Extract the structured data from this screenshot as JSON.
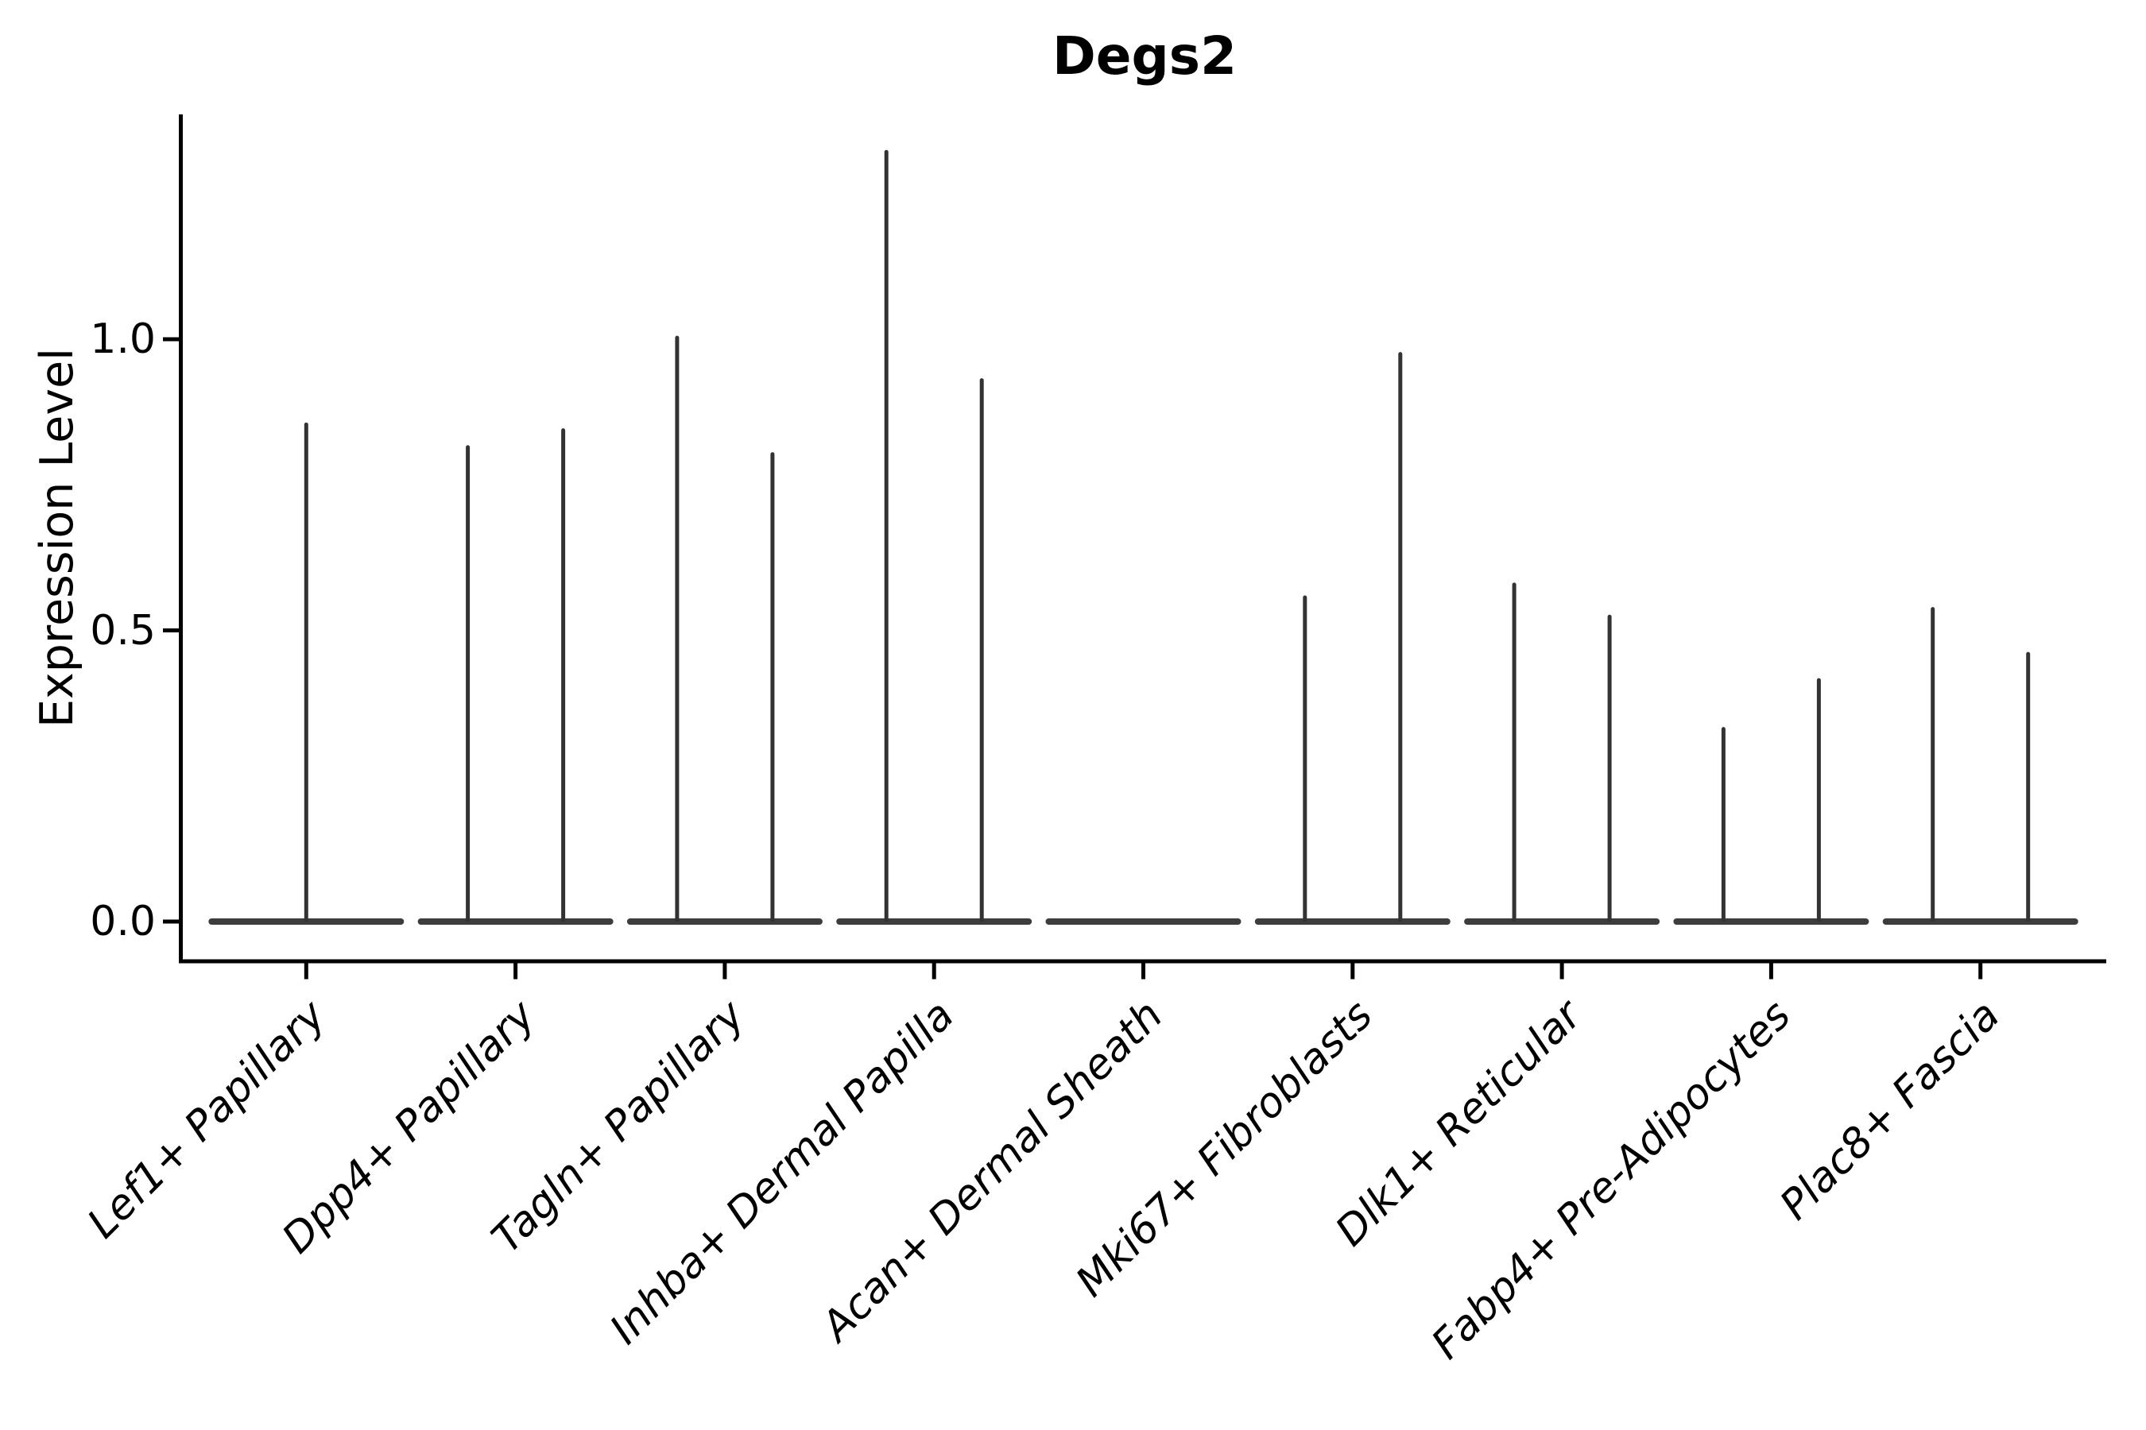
{
  "title": "Degs2",
  "axes": {
    "ylabel": "Expression Level",
    "yticks": [
      {
        "label": "0.0",
        "value": 0.0
      },
      {
        "label": "0.5",
        "value": 0.5
      },
      {
        "label": "1.0",
        "value": 1.0
      }
    ]
  },
  "chart_data": {
    "type": "violin",
    "title": "Degs2",
    "ylabel": "Expression Level",
    "ylim": [
      -0.068,
      1.386
    ],
    "grid": false,
    "legend": "none",
    "categories": [
      "Lef1+ Papillary",
      "Dpp4+ Papillary",
      "Tagln+ Papillary",
      "Inhba+ Dermal Papilla",
      "Acan+ Dermal Sheath",
      "Mki67+ Fibroblasts",
      "Dlk1+ Reticular",
      "Fabp4+ Pre-Adipocytes",
      "Plac8+ Fascia"
    ],
    "groups": [
      {
        "category": "Lef1+ Papillary",
        "violins": [
          {
            "position": "center",
            "peak": 0.857
          }
        ]
      },
      {
        "category": "Dpp4+ Papillary",
        "violins": [
          {
            "position": "left",
            "peak": 0.818
          },
          {
            "position": "right",
            "peak": 0.847
          }
        ]
      },
      {
        "category": "Tagln+ Papillary",
        "violins": [
          {
            "position": "left",
            "peak": 1.006
          },
          {
            "position": "right",
            "peak": 0.806
          }
        ]
      },
      {
        "category": "Inhba+ Dermal Papilla",
        "violins": [
          {
            "position": "left",
            "peak": 1.325
          },
          {
            "position": "right",
            "peak": 0.933
          }
        ]
      },
      {
        "category": "Acan+ Dermal Sheath",
        "violins": [
          {
            "position": "left",
            "peak": 0.0
          },
          {
            "position": "right",
            "peak": 0.0
          }
        ]
      },
      {
        "category": "Mki67+ Fibroblasts",
        "violins": [
          {
            "position": "left",
            "peak": 0.56
          },
          {
            "position": "right",
            "peak": 0.978
          }
        ]
      },
      {
        "category": "Dlk1+ Reticular",
        "violins": [
          {
            "position": "left",
            "peak": 0.582
          },
          {
            "position": "right",
            "peak": 0.527
          }
        ]
      },
      {
        "category": "Fabp4+ Pre-Adipocytes",
        "violins": [
          {
            "position": "left",
            "peak": 0.334
          },
          {
            "position": "right",
            "peak": 0.418
          }
        ]
      },
      {
        "category": "Plac8+ Fascia",
        "violins": [
          {
            "position": "left",
            "peak": 0.54
          },
          {
            "position": "right",
            "peak": 0.463
          }
        ]
      }
    ],
    "colors": {
      "violin_body": "#3d3d3d",
      "violin_spike": "#333333",
      "axis": "#000000",
      "background": "#ffffff"
    }
  }
}
